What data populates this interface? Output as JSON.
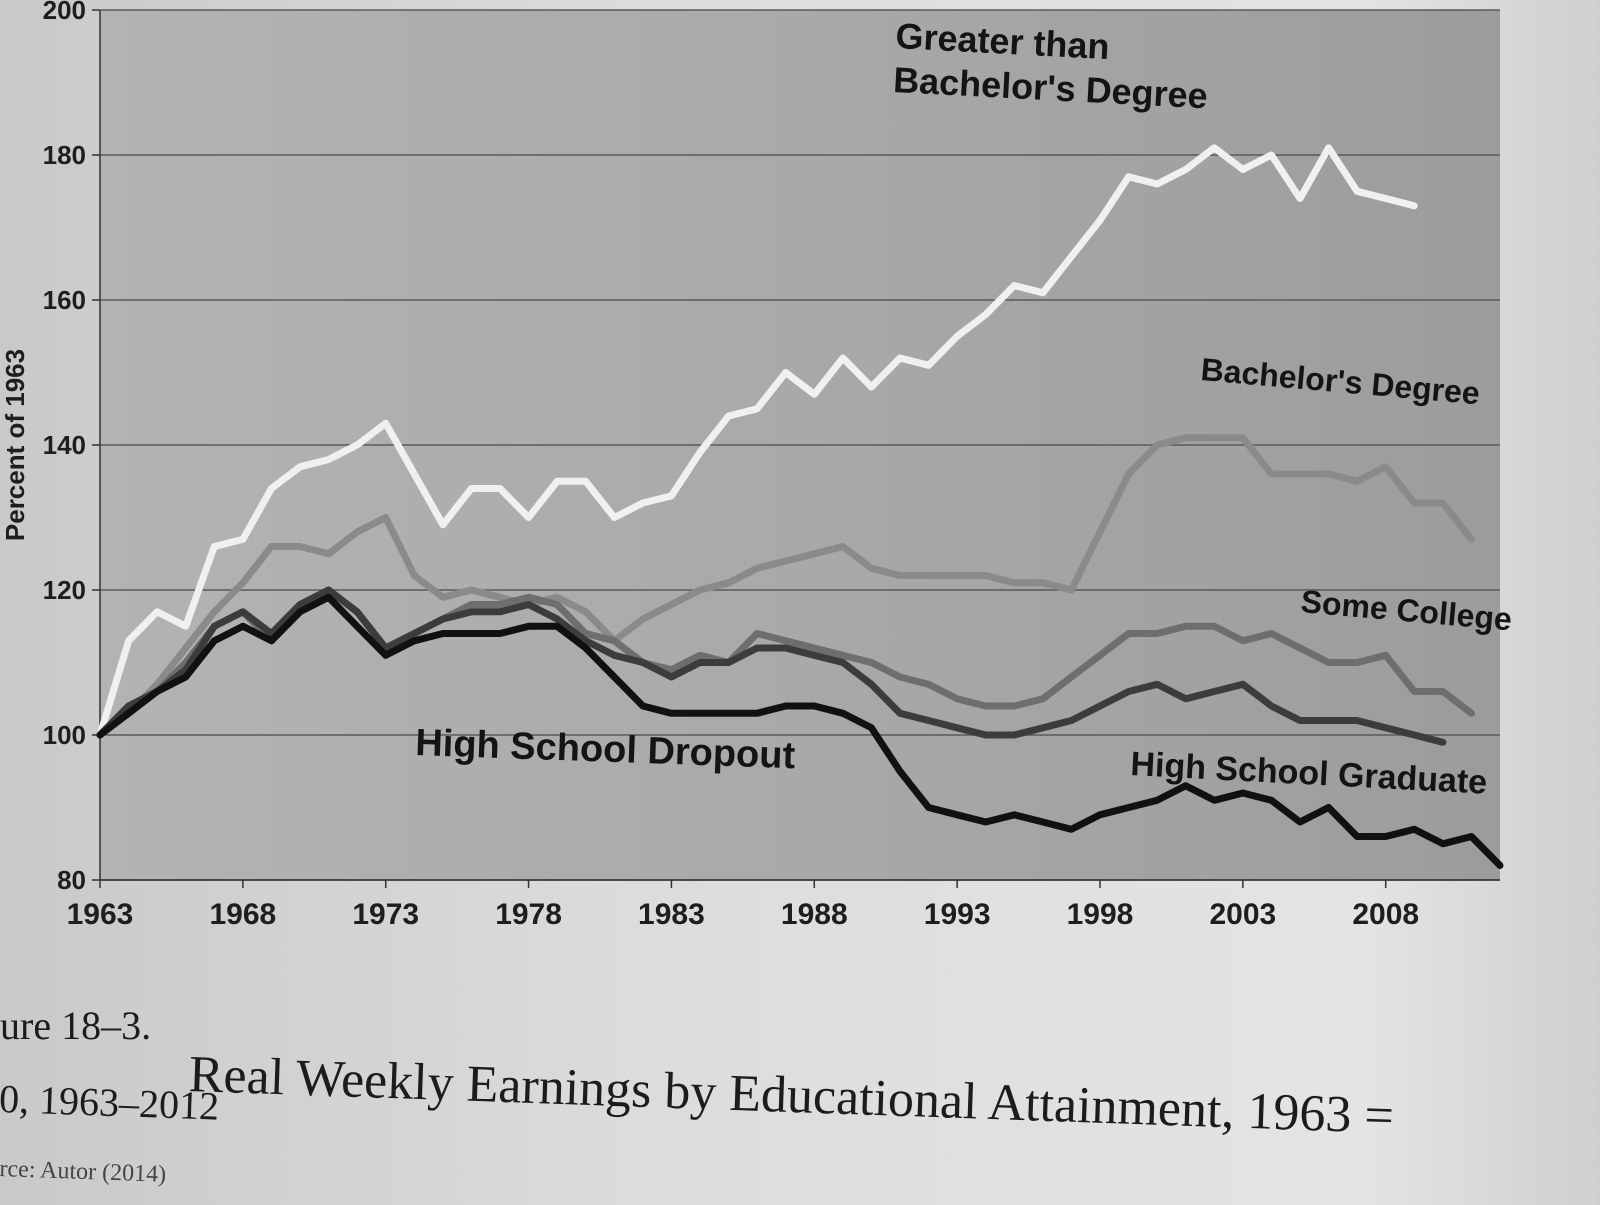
{
  "chart_data": {
    "type": "line",
    "title": "",
    "xlabel": "",
    "ylabel": "Percent of 1963",
    "xlim": [
      1963,
      2012
    ],
    "ylim": [
      80,
      200
    ],
    "x_ticks": [
      "1963",
      "1968",
      "1973",
      "1978",
      "1983",
      "1988",
      "1993",
      "1998",
      "2003",
      "2008"
    ],
    "y_ticks": [
      "80",
      "100",
      "120",
      "140",
      "160",
      "180",
      "200"
    ],
    "grid": true,
    "x": [
      1963,
      1964,
      1965,
      1966,
      1967,
      1968,
      1969,
      1970,
      1971,
      1972,
      1973,
      1974,
      1975,
      1976,
      1977,
      1978,
      1979,
      1980,
      1981,
      1982,
      1983,
      1984,
      1985,
      1986,
      1987,
      1988,
      1989,
      1990,
      1991,
      1992,
      1993,
      1994,
      1995,
      1996,
      1997,
      1998,
      1999,
      2000,
      2001,
      2002,
      2003,
      2004,
      2005,
      2006,
      2007,
      2008,
      2009,
      2010,
      2011,
      2012
    ],
    "series": [
      {
        "name": "Greater than Bachelor's Degree",
        "color": "#f0f0f0",
        "label": [
          "Greater than",
          "Bachelor's Degree"
        ],
        "values": [
          100,
          113,
          117,
          115,
          126,
          127,
          134,
          137,
          138,
          140,
          143,
          136,
          129,
          134,
          134,
          130,
          135,
          135,
          130,
          132,
          133,
          139,
          144,
          145,
          150,
          147,
          152,
          148,
          152,
          151,
          155,
          158,
          162,
          161,
          166,
          171,
          177,
          176,
          178,
          181,
          178,
          180,
          174,
          181,
          175,
          174,
          173,
          null,
          null,
          null
        ]
      },
      {
        "name": "Bachelor's Degree",
        "color": "#8a8a8a",
        "label": [
          "Bachelor's Degree"
        ],
        "values": [
          100,
          103,
          107,
          112,
          117,
          121,
          126,
          126,
          125,
          128,
          130,
          122,
          119,
          120,
          119,
          118,
          119,
          117,
          113,
          116,
          118,
          120,
          121,
          123,
          124,
          125,
          126,
          123,
          122,
          122,
          122,
          122,
          121,
          121,
          120,
          128,
          136,
          140,
          141,
          141,
          141,
          136,
          136,
          136,
          135,
          137,
          132,
          132,
          127,
          null
        ]
      },
      {
        "name": "Some College",
        "color": "#6e6e6e",
        "label": [
          "Some College"
        ],
        "values": [
          100,
          104,
          106,
          110,
          115,
          117,
          113,
          117,
          120,
          117,
          112,
          114,
          116,
          118,
          118,
          119,
          118,
          114,
          113,
          110,
          109,
          111,
          110,
          114,
          113,
          112,
          111,
          110,
          108,
          107,
          105,
          104,
          104,
          105,
          108,
          111,
          114,
          114,
          115,
          115,
          113,
          114,
          112,
          110,
          110,
          111,
          106,
          106,
          103,
          null
        ]
      },
      {
        "name": "High School Graduate",
        "color": "#3c3c3c",
        "label": [
          "High School Graduate"
        ],
        "values": [
          100,
          104,
          106,
          109,
          115,
          117,
          114,
          118,
          120,
          117,
          112,
          114,
          116,
          117,
          117,
          118,
          116,
          113,
          111,
          110,
          108,
          110,
          110,
          112,
          112,
          111,
          110,
          107,
          103,
          102,
          101,
          100,
          100,
          101,
          102,
          104,
          106,
          107,
          105,
          106,
          107,
          104,
          102,
          102,
          102,
          101,
          100,
          99,
          null,
          null
        ]
      },
      {
        "name": "High School Dropout",
        "color": "#111111",
        "label": [
          "High School Dropout"
        ],
        "values": [
          100,
          103,
          106,
          108,
          113,
          115,
          113,
          117,
          119,
          115,
          111,
          113,
          114,
          114,
          114,
          115,
          115,
          112,
          108,
          104,
          103,
          103,
          103,
          103,
          104,
          104,
          103,
          101,
          95,
          90,
          89,
          88,
          89,
          88,
          87,
          89,
          90,
          91,
          93,
          91,
          92,
          91,
          88,
          90,
          86,
          86,
          87,
          85,
          86,
          82
        ]
      }
    ]
  },
  "caption": {
    "figure_label": "ure 18–3.",
    "title": "Real Weekly Earnings by Educational Attainment, 1963 =",
    "subtitle": "0, 1963–2012",
    "source": "rce: Autor (2014)"
  }
}
